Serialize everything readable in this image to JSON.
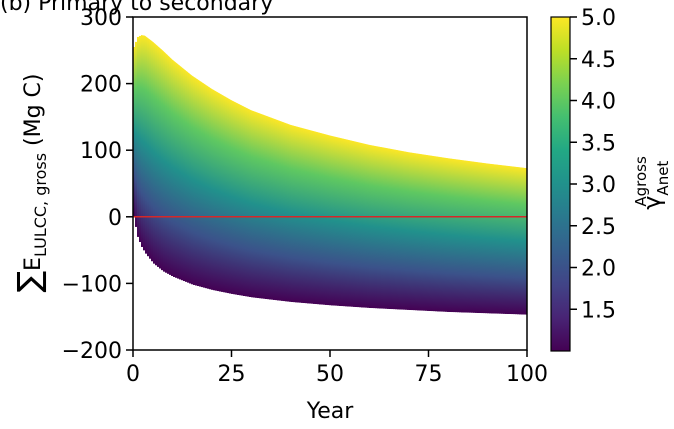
{
  "chart_data": {
    "type": "area",
    "title": "(b) Primary to secondary",
    "xlabel": "Year",
    "ylabel": {
      "prefix": "∑",
      "main": "E",
      "sub": "LULCC, gross",
      "unit": " (Mg C)"
    },
    "xlim": [
      0,
      100
    ],
    "ylim": [
      -200,
      300
    ],
    "x_ticks": [
      0,
      25,
      50,
      75,
      100
    ],
    "y_ticks": [
      -200,
      -100,
      0,
      100,
      200,
      300
    ],
    "x_tick_labels": [
      "0",
      "25",
      "50",
      "75",
      "100"
    ],
    "y_tick_labels": [
      "−200",
      "−100",
      "0",
      "100",
      "200",
      "300"
    ],
    "grid": false,
    "colormap": "viridis",
    "colorbar": {
      "range": [
        1.0,
        5.0
      ],
      "ticks": [
        1.5,
        2.0,
        2.5,
        3.0,
        3.5,
        4.0,
        4.5,
        5.0
      ],
      "tick_labels": [
        "1.5",
        "2.0",
        "2.5",
        "3.0",
        "3.5",
        "4.0",
        "4.5",
        "5.0"
      ],
      "label": {
        "main": "γ",
        "sup": "Agross",
        "sub": "Anet"
      }
    },
    "band": {
      "x": [
        0,
        1,
        2,
        3,
        5,
        7.5,
        10,
        15,
        20,
        25,
        30,
        40,
        50,
        60,
        70,
        80,
        90,
        100
      ],
      "upper": [
        255,
        270,
        273,
        272,
        263,
        250,
        236,
        212,
        192,
        175,
        160,
        138,
        122,
        108,
        97,
        88,
        80,
        73
      ],
      "lower": [
        0,
        -30,
        -45,
        -55,
        -70,
        -82,
        -90,
        -102,
        -110,
        -116,
        -121,
        -128,
        -133,
        -137,
        -140,
        -143,
        -145,
        -147
      ]
    },
    "reference_line": {
      "y": 0,
      "color": "#d62728"
    }
  }
}
